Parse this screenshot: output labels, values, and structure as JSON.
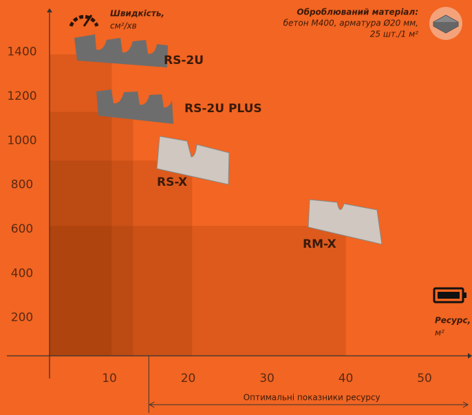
{
  "chart_data": {
    "type": "rect",
    "y_label": [
      "Швидкість,",
      "см²/хв"
    ],
    "material_label": [
      "Оброблюваний матеріал:",
      "бетон М400, арматура Ø20 мм,",
      "25 шт./1 м²"
    ],
    "x_label": [
      "Ресурс,",
      "м²"
    ],
    "series": [
      {
        "name": "RS-2U",
        "x": 10.3,
        "y": 1390
      },
      {
        "name": "RS-2U PLUS",
        "x": 13,
        "y": 1130
      },
      {
        "name": "RS-X",
        "x": 20.5,
        "y": 910
      },
      {
        "name": "RM-X",
        "x": 40,
        "y": 615
      }
    ],
    "optimal": {
      "text": "Оптимальні показники ресурсу",
      "from": 15
    },
    "xlim": [
      2.4,
      55.5
    ],
    "ylim": [
      28,
      1598
    ],
    "xticks": [
      10,
      20,
      30,
      40,
      50
    ],
    "yticks": [
      200,
      400,
      600,
      800,
      1000,
      1200,
      1400
    ]
  }
}
